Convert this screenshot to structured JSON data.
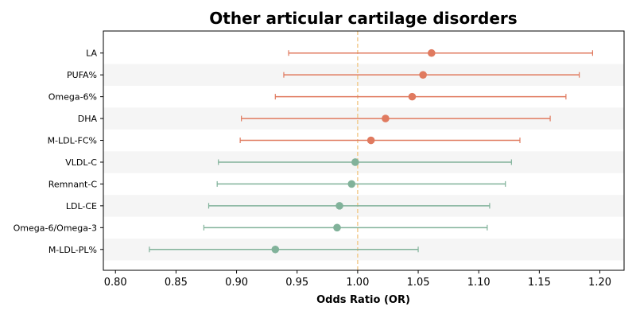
{
  "chart_data": {
    "type": "forest",
    "title": "Other articular cartilage disorders",
    "xlabel": "Odds Ratio (OR)",
    "ylabel": "",
    "xlim": [
      0.79,
      1.22
    ],
    "xticks": [
      "0.80",
      "0.85",
      "0.90",
      "0.95",
      "1.00",
      "1.05",
      "1.10",
      "1.15",
      "1.20"
    ],
    "reference_line": 1.0,
    "colors": {
      "risk": "#e07a5f",
      "protective": "#81b29a",
      "reference": "#f2cc8f",
      "band": "#f5f5f5"
    },
    "rows": [
      {
        "label": "LA",
        "or": 1.061,
        "lower": 0.943,
        "upper": 1.194,
        "group": "risk"
      },
      {
        "label": "PUFA%",
        "or": 1.054,
        "lower": 0.939,
        "upper": 1.183,
        "group": "risk"
      },
      {
        "label": "Omega-6%",
        "or": 1.045,
        "lower": 0.932,
        "upper": 1.172,
        "group": "risk"
      },
      {
        "label": "DHA",
        "or": 1.023,
        "lower": 0.904,
        "upper": 1.159,
        "group": "risk"
      },
      {
        "label": "M-LDL-FC%",
        "or": 1.011,
        "lower": 0.903,
        "upper": 1.134,
        "group": "risk"
      },
      {
        "label": "VLDL-C",
        "or": 0.998,
        "lower": 0.885,
        "upper": 1.127,
        "group": "protective"
      },
      {
        "label": "Remnant-C",
        "or": 0.995,
        "lower": 0.884,
        "upper": 1.122,
        "group": "protective"
      },
      {
        "label": "LDL-CE",
        "or": 0.985,
        "lower": 0.877,
        "upper": 1.109,
        "group": "protective"
      },
      {
        "label": "Omega-6/Omega-3",
        "or": 0.983,
        "lower": 0.873,
        "upper": 1.107,
        "group": "protective"
      },
      {
        "label": "M-LDL-PL%",
        "or": 0.932,
        "lower": 0.828,
        "upper": 1.05,
        "group": "protective"
      }
    ]
  }
}
